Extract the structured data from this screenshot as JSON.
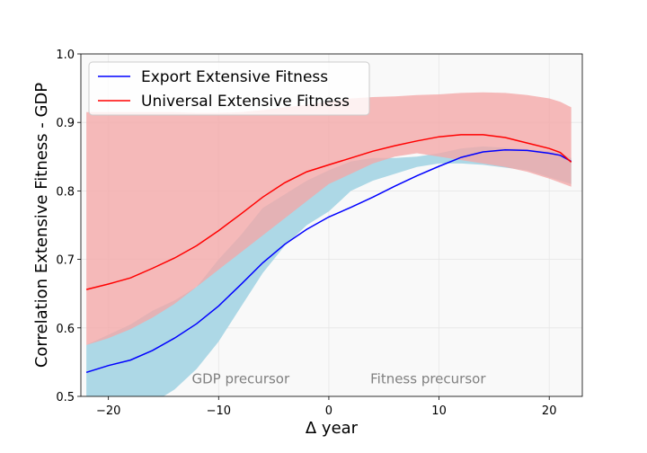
{
  "chart_data": {
    "type": "line",
    "title": "",
    "xlabel": "Δ year",
    "ylabel": "Correlation Extensive Fitness - GDP",
    "xlim": [
      -22.5,
      23
    ],
    "ylim": [
      0.5,
      1.0
    ],
    "xticks": [
      -20,
      -10,
      0,
      10,
      20
    ],
    "yticks": [
      0.5,
      0.6,
      0.7,
      0.8,
      0.9,
      1.0
    ],
    "xtick_labels": [
      "−20",
      "−10",
      "0",
      "10",
      "20"
    ],
    "ytick_labels": [
      "0.5",
      "0.6",
      "0.7",
      "0.8",
      "0.9",
      "1.0"
    ],
    "grid": true,
    "legend_position": "upper-left",
    "annotations": [
      {
        "text": "GDP precursor",
        "x": -8,
        "y": 0.519
      },
      {
        "text": "Fitness precursor",
        "x": 9,
        "y": 0.519
      }
    ],
    "series": [
      {
        "name": "Export Extensive Fitness",
        "color": "#0000ff",
        "band_color": "#add8e6",
        "x": [
          -22,
          -20,
          -18,
          -16,
          -14,
          -12,
          -10,
          -8,
          -6,
          -4,
          -2,
          0,
          2,
          4,
          6,
          8,
          10,
          12,
          14,
          16,
          18,
          20,
          21,
          22
        ],
        "values": [
          0.535,
          0.545,
          0.553,
          0.567,
          0.585,
          0.606,
          0.632,
          0.663,
          0.695,
          0.722,
          0.744,
          0.762,
          0.776,
          0.791,
          0.807,
          0.822,
          0.836,
          0.849,
          0.857,
          0.86,
          0.859,
          0.855,
          0.852,
          0.843
        ],
        "lower": [
          0.47,
          0.47,
          0.48,
          0.49,
          0.51,
          0.54,
          0.58,
          0.63,
          0.68,
          0.72,
          0.75,
          0.77,
          0.8,
          0.815,
          0.825,
          0.835,
          0.84,
          0.84,
          0.838,
          0.834,
          0.83,
          0.82,
          0.815,
          0.81
        ],
        "upper": [
          0.575,
          0.59,
          0.605,
          0.625,
          0.64,
          0.66,
          0.7,
          0.735,
          0.775,
          0.795,
          0.815,
          0.83,
          0.843,
          0.848,
          0.848,
          0.85,
          0.855,
          0.862,
          0.865,
          0.863,
          0.861,
          0.858,
          0.855,
          0.848
        ]
      },
      {
        "name": "Universal Extensive Fitness",
        "color": "#ff0000",
        "band_color": "#f4a6a6",
        "x": [
          -22,
          -20,
          -18,
          -16,
          -14,
          -12,
          -10,
          -8,
          -6,
          -4,
          -2,
          0,
          2,
          4,
          6,
          8,
          10,
          12,
          14,
          16,
          18,
          20,
          21,
          22
        ],
        "values": [
          0.656,
          0.664,
          0.673,
          0.687,
          0.702,
          0.72,
          0.742,
          0.766,
          0.791,
          0.812,
          0.828,
          0.838,
          0.848,
          0.858,
          0.866,
          0.873,
          0.879,
          0.882,
          0.882,
          0.878,
          0.87,
          0.862,
          0.856,
          0.842
        ],
        "lower": [
          0.575,
          0.585,
          0.598,
          0.615,
          0.635,
          0.66,
          0.685,
          0.71,
          0.735,
          0.76,
          0.785,
          0.81,
          0.825,
          0.84,
          0.85,
          0.855,
          0.85,
          0.845,
          0.84,
          0.835,
          0.828,
          0.818,
          0.812,
          0.806
        ],
        "upper": [
          0.915,
          0.915,
          0.915,
          0.915,
          0.915,
          0.914,
          0.914,
          0.915,
          0.918,
          0.922,
          0.926,
          0.93,
          0.935,
          0.937,
          0.938,
          0.94,
          0.941,
          0.943,
          0.944,
          0.943,
          0.94,
          0.935,
          0.93,
          0.922
        ]
      }
    ],
    "overlap_band_color": "#c6a5ae"
  }
}
